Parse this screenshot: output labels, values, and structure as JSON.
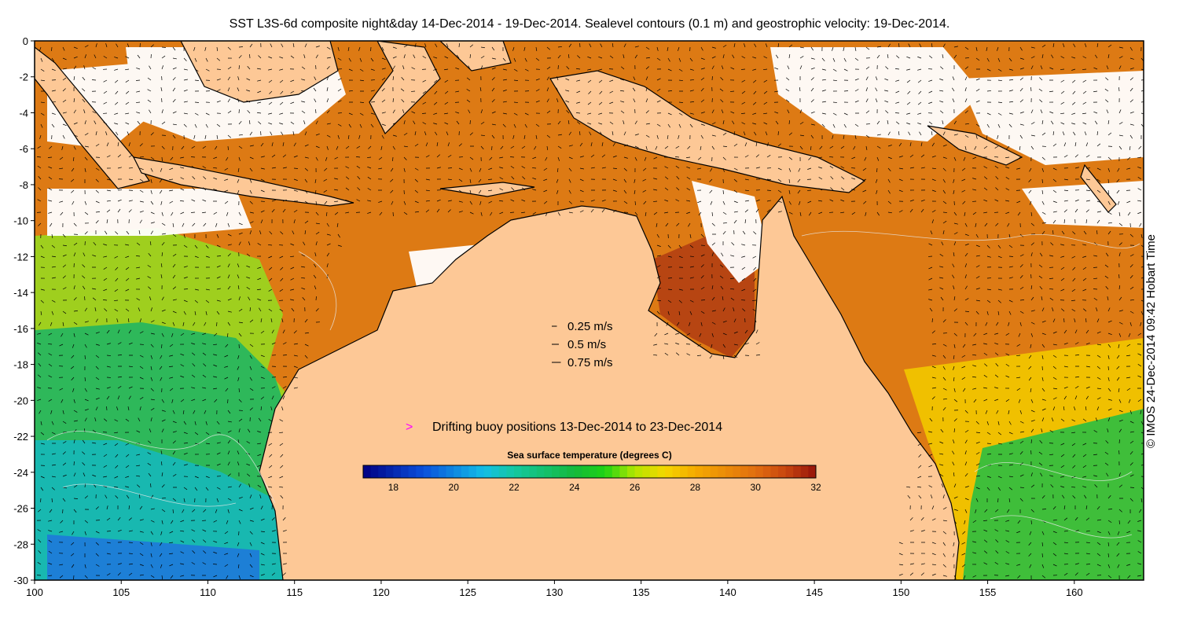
{
  "title": "SST L3S-6d composite night&day 14-Dec-2014 - 19-Dec-2014. Sealevel contours (0.1 m) and geostrophic velocity: 19-Dec-2014.",
  "x_axis": {
    "min": 100,
    "max": 164,
    "ticks": [
      100,
      105,
      110,
      115,
      120,
      125,
      130,
      135,
      140,
      145,
      150,
      155,
      160
    ]
  },
  "y_axis": {
    "min": -30,
    "max": 0,
    "ticks": [
      0,
      -2,
      -4,
      -6,
      -8,
      -10,
      -12,
      -14,
      -16,
      -18,
      -20,
      -22,
      -24,
      -26,
      -28,
      -30
    ]
  },
  "velocity_legend": [
    {
      "label": "0.25 m/s",
      "speed": 0.25
    },
    {
      "label": "0.5 m/s",
      "speed": 0.5
    },
    {
      "label": "0.75 m/s",
      "speed": 0.75
    }
  ],
  "buoy_legend": {
    "label": "Drifting buoy positions 13-Dec-2014 to 23-Dec-2014",
    "color": "#ff00ff"
  },
  "colorbar": {
    "title": "Sea surface temperature (degrees C)",
    "min": 17,
    "max": 32,
    "ticks": [
      18,
      20,
      22,
      24,
      26,
      28,
      30,
      32
    ]
  },
  "copyright": "© IMOS 24-Dec-2014 09:42 Hobart Time",
  "colors": {
    "land": "#fdc896",
    "cloud": "#ffffff",
    "frame": "#000000"
  }
}
